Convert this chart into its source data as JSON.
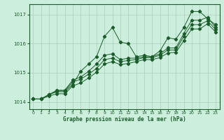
{
  "xlabel": "Graphe pression niveau de la mer (hPa)",
  "background_color": "#cceedd",
  "grid_color": "#aaccbb",
  "line_color": "#1a5c2a",
  "xlim": [
    -0.5,
    23.5
  ],
  "ylim": [
    1013.75,
    1017.35
  ],
  "yticks": [
    1014,
    1015,
    1016,
    1017
  ],
  "xticks": [
    0,
    1,
    2,
    3,
    4,
    5,
    6,
    7,
    8,
    9,
    10,
    11,
    12,
    13,
    14,
    15,
    16,
    17,
    18,
    19,
    20,
    21,
    22,
    23
  ],
  "series": [
    [
      1014.1,
      1014.1,
      1014.25,
      1014.35,
      1014.35,
      1014.6,
      1015.05,
      1015.3,
      1015.55,
      1016.25,
      1016.55,
      1016.05,
      1016.0,
      1015.55,
      1015.6,
      1015.55,
      1015.75,
      1016.2,
      1016.15,
      1016.55,
      1017.1,
      1017.1,
      1016.85,
      1016.65
    ],
    [
      1014.1,
      1014.1,
      1014.25,
      1014.4,
      1014.4,
      1014.75,
      1014.85,
      1015.05,
      1015.3,
      1015.6,
      1015.65,
      1015.45,
      1015.5,
      1015.5,
      1015.55,
      1015.55,
      1015.65,
      1015.85,
      1015.85,
      1016.35,
      1016.8,
      1016.8,
      1016.9,
      1016.55
    ],
    [
      1014.1,
      1014.1,
      1014.25,
      1014.38,
      1014.38,
      1014.68,
      1014.78,
      1014.95,
      1015.15,
      1015.45,
      1015.5,
      1015.38,
      1015.42,
      1015.45,
      1015.52,
      1015.52,
      1015.6,
      1015.78,
      1015.78,
      1016.25,
      1016.65,
      1016.65,
      1016.78,
      1016.48
    ],
    [
      1014.1,
      1014.1,
      1014.2,
      1014.28,
      1014.28,
      1014.55,
      1014.65,
      1014.82,
      1015.02,
      1015.3,
      1015.38,
      1015.28,
      1015.32,
      1015.38,
      1015.45,
      1015.45,
      1015.52,
      1015.68,
      1015.7,
      1016.1,
      1016.5,
      1016.5,
      1016.68,
      1016.4
    ]
  ]
}
